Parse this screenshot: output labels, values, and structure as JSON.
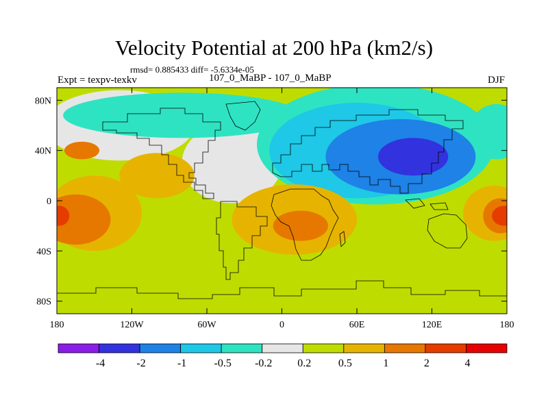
{
  "chart_data": {
    "type": "heatmap",
    "title": "Velocity Potential at 200 hPa (km2/s)",
    "stats": "rmsd= 0.885433 diff= -5.6334e-05",
    "left_label": "Expt = texpv-texkv",
    "center_label": "107_0_MaBP - 107_0_MaBP",
    "right_label": "DJF",
    "xlabel": "",
    "ylabel": "",
    "xlim": [
      -180,
      180
    ],
    "ylim": [
      -90,
      90
    ],
    "x_ticks": [
      {
        "value": -180,
        "label": "180"
      },
      {
        "value": -120,
        "label": "120W"
      },
      {
        "value": -60,
        "label": "60W"
      },
      {
        "value": 0,
        "label": "0"
      },
      {
        "value": 60,
        "label": "60E"
      },
      {
        "value": 120,
        "label": "120E"
      },
      {
        "value": 180,
        "label": "180"
      }
    ],
    "y_ticks": [
      {
        "value": 80,
        "label": "80N"
      },
      {
        "value": 40,
        "label": "40N"
      },
      {
        "value": 0,
        "label": "0"
      },
      {
        "value": -40,
        "label": "40S"
      },
      {
        "value": -80,
        "label": "80S"
      }
    ],
    "colorbar": {
      "colors": [
        "#8a1ee8",
        "#3232de",
        "#1e82e6",
        "#1ec8e6",
        "#2ee3c2",
        "#e6e6e6",
        "#bfdc00",
        "#e6b400",
        "#e67800",
        "#e63c00",
        "#e60000"
      ],
      "boundaries": [
        "-4",
        "-2",
        "-1",
        "-0.5",
        "-0.2",
        "0.2",
        "0.5",
        "1",
        "2",
        "4"
      ]
    },
    "field_regions": [
      {
        "level": "0.2 to 0.5",
        "color": "#bfdc00",
        "center": [
          0,
          0
        ],
        "radius": [
          180,
          90
        ]
      },
      {
        "level": "-0.2 to 0.2",
        "color": "#e6e6e6",
        "center": [
          -130,
          60
        ],
        "radius": [
          60,
          28
        ]
      },
      {
        "level": "-0.2 to 0.2",
        "color": "#e6e6e6",
        "center": [
          -40,
          30
        ],
        "radius": [
          40,
          32
        ]
      },
      {
        "level": "-0.5 to -0.2",
        "color": "#2ee3c2",
        "center": [
          -80,
          68
        ],
        "radius": [
          95,
          18
        ]
      },
      {
        "level": "-0.5 to -0.2",
        "color": "#2ee3c2",
        "center": [
          75,
          45
        ],
        "radius": [
          95,
          48
        ]
      },
      {
        "level": "-0.5 to -0.2",
        "color": "#2ee3c2",
        "center": [
          172,
          55
        ],
        "radius": [
          22,
          22
        ]
      },
      {
        "level": "-1 to -0.5",
        "color": "#1ec8e6",
        "center": [
          60,
          40
        ],
        "radius": [
          70,
          38
        ]
      },
      {
        "level": "-2 to -1",
        "color": "#1e82e6",
        "center": [
          95,
          35
        ],
        "radius": [
          60,
          30
        ]
      },
      {
        "level": "-4 to -2",
        "color": "#3232de",
        "center": [
          105,
          35
        ],
        "radius": [
          28,
          15
        ]
      },
      {
        "level": "0.5 to 1",
        "color": "#e6b400",
        "center": [
          -150,
          -10
        ],
        "radius": [
          38,
          30
        ]
      },
      {
        "level": "0.5 to 1",
        "color": "#e6b400",
        "center": [
          -100,
          20
        ],
        "radius": [
          30,
          18
        ]
      },
      {
        "level": "0.5 to 1",
        "color": "#e6b400",
        "center": [
          10,
          -15
        ],
        "radius": [
          50,
          28
        ]
      },
      {
        "level": "0.5 to 1",
        "color": "#e6b400",
        "center": [
          170,
          -10
        ],
        "radius": [
          25,
          22
        ]
      },
      {
        "level": "1 to 2",
        "color": "#e67800",
        "center": [
          -165,
          -15
        ],
        "radius": [
          28,
          20
        ]
      },
      {
        "level": "1 to 2",
        "color": "#e67800",
        "center": [
          -160,
          40
        ],
        "radius": [
          14,
          7
        ]
      },
      {
        "level": "1 to 2",
        "color": "#e67800",
        "center": [
          15,
          -20
        ],
        "radius": [
          22,
          12
        ]
      },
      {
        "level": "1 to 2",
        "color": "#e67800",
        "center": [
          175,
          -12
        ],
        "radius": [
          14,
          14
        ]
      },
      {
        "level": "2 to 4",
        "color": "#e63c00",
        "center": [
          -178,
          -12
        ],
        "radius": [
          8,
          8
        ]
      },
      {
        "level": "2 to 4",
        "color": "#e63c00",
        "center": [
          178,
          -12
        ],
        "radius": [
          10,
          8
        ]
      }
    ]
  }
}
